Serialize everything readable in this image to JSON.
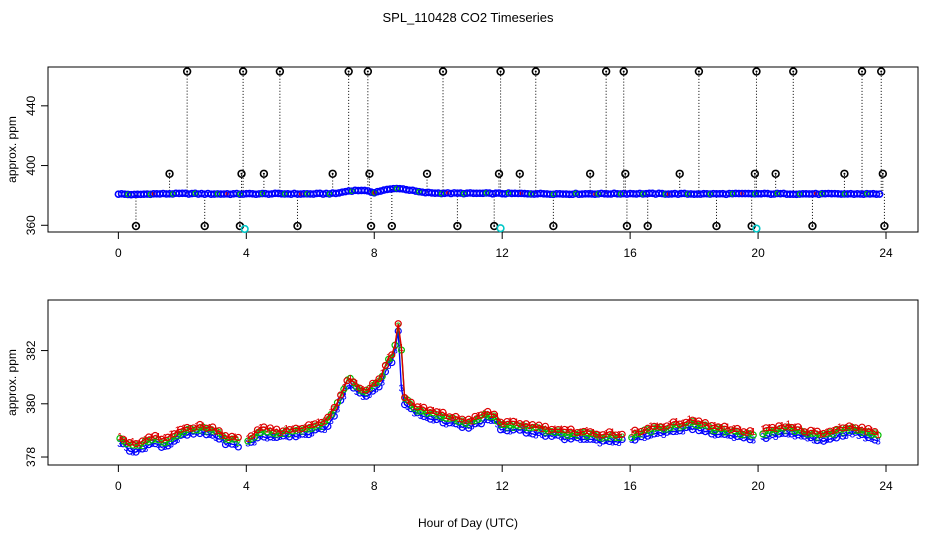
{
  "chart_data": [
    {
      "type": "scatter",
      "title": "SPL_110428  CO2 Timeseries",
      "xlabel": "",
      "ylabel": "approx. ppm",
      "xlim": [
        -2.2,
        25
      ],
      "ylim": [
        355.5,
        466
      ],
      "x_ticks": [
        0,
        4,
        8,
        12,
        16,
        20,
        24
      ],
      "y_ticks": [
        360,
        400,
        440
      ],
      "baseline": [
        [
          0,
          381.0
        ],
        [
          0.5,
          380.5
        ],
        [
          1,
          381.0
        ],
        [
          2,
          381.2
        ],
        [
          3,
          381.0
        ],
        [
          4,
          381.0
        ],
        [
          5,
          381.1
        ],
        [
          6,
          381.0
        ],
        [
          6.8,
          381.3
        ],
        [
          7.2,
          383.0
        ],
        [
          7.6,
          383.5
        ],
        [
          8,
          382.0
        ],
        [
          8.3,
          383.5
        ],
        [
          8.7,
          384.8
        ],
        [
          9.0,
          384.0
        ],
        [
          9.5,
          382.0
        ],
        [
          10,
          381.5
        ],
        [
          12,
          381.3
        ],
        [
          14,
          381.0
        ],
        [
          16,
          381.2
        ],
        [
          18,
          381.0
        ],
        [
          20,
          381.1
        ],
        [
          22,
          381.0
        ],
        [
          23.8,
          381.0
        ]
      ],
      "spikes_high": [
        2.15,
        3.9,
        5.05,
        7.2,
        7.8,
        10.15,
        11.95,
        13.05,
        15.25,
        15.8,
        18.15,
        19.95,
        21.1,
        23.25,
        23.85
      ],
      "spikes_mid": [
        1.6,
        3.85,
        4.55,
        6.7,
        7.85,
        9.65,
        11.9,
        12.55,
        14.75,
        15.85,
        17.55,
        19.9,
        20.55,
        22.7,
        23.9
      ],
      "spikes_low": [
        0.55,
        2.7,
        3.8,
        5.6,
        7.9,
        8.55,
        10.6,
        11.75,
        13.6,
        15.9,
        16.55,
        18.7,
        19.8,
        21.7,
        23.95
      ],
      "cyan_points": [
        [
          3.95,
          357.5
        ],
        [
          11.95,
          358.0
        ],
        [
          19.95,
          357.8
        ]
      ],
      "series_colors": {
        "spike": "#000000",
        "baseline": "#0000ff",
        "green": "#00c000",
        "red": "#dd0000",
        "cyan": "#00c8c8"
      }
    },
    {
      "type": "line",
      "title": "",
      "xlabel": "Hour of Day (UTC)",
      "ylabel": "approx. ppm",
      "xlim": [
        -2.2,
        25
      ],
      "ylim": [
        377.7,
        383.9
      ],
      "x_ticks": [
        0,
        4,
        8,
        12,
        16,
        20,
        24
      ],
      "y_ticks": [
        378,
        380,
        382
      ],
      "gaps_after_hour": [
        3.8,
        15.8,
        19.9
      ],
      "series": [
        {
          "name": "1",
          "color": "#dd0000",
          "marker": "1",
          "offset": 0.28
        },
        {
          "name": "2",
          "color": "#00c000",
          "marker": "2",
          "offset": 0.18
        },
        {
          "name": "3",
          "color": "#0000ff",
          "marker": "3",
          "offset": 0.0
        }
      ],
      "profile": [
        [
          0,
          378.6
        ],
        [
          0.3,
          378.3
        ],
        [
          0.6,
          378.2
        ],
        [
          1,
          378.5
        ],
        [
          1.5,
          378.4
        ],
        [
          2,
          378.8
        ],
        [
          2.5,
          378.9
        ],
        [
          3,
          378.8
        ],
        [
          3.4,
          378.5
        ],
        [
          3.8,
          378.4
        ],
        [
          4.1,
          378.5
        ],
        [
          4.5,
          378.8
        ],
        [
          5,
          378.7
        ],
        [
          5.5,
          378.8
        ],
        [
          6,
          378.9
        ],
        [
          6.5,
          379.1
        ],
        [
          6.8,
          379.7
        ],
        [
          7.0,
          380.2
        ],
        [
          7.2,
          380.8
        ],
        [
          7.4,
          380.5
        ],
        [
          7.7,
          380.2
        ],
        [
          7.9,
          380.4
        ],
        [
          8.2,
          380.7
        ],
        [
          8.4,
          381.4
        ],
        [
          8.6,
          381.6
        ],
        [
          8.75,
          382.7
        ],
        [
          8.85,
          381.8
        ],
        [
          8.95,
          380.0
        ],
        [
          9.2,
          379.7
        ],
        [
          9.6,
          379.5
        ],
        [
          10,
          379.4
        ],
        [
          10.5,
          379.2
        ],
        [
          11,
          379.1
        ],
        [
          11.5,
          379.4
        ],
        [
          11.8,
          379.3
        ],
        [
          12,
          379.0
        ],
        [
          12.5,
          379.0
        ],
        [
          13,
          378.9
        ],
        [
          13.5,
          378.8
        ],
        [
          14,
          378.7
        ],
        [
          14.5,
          378.7
        ],
        [
          15,
          378.6
        ],
        [
          15.5,
          378.6
        ],
        [
          15.8,
          378.6
        ],
        [
          16.0,
          378.6
        ],
        [
          16.5,
          378.8
        ],
        [
          17,
          378.9
        ],
        [
          17.5,
          379.0
        ],
        [
          18,
          379.1
        ],
        [
          18.5,
          378.9
        ],
        [
          19,
          378.8
        ],
        [
          19.5,
          378.7
        ],
        [
          19.9,
          378.7
        ],
        [
          20,
          378.7
        ],
        [
          20.5,
          378.8
        ],
        [
          21,
          378.9
        ],
        [
          21.5,
          378.7
        ],
        [
          22,
          378.6
        ],
        [
          22.5,
          378.8
        ],
        [
          23,
          378.9
        ],
        [
          23.5,
          378.7
        ],
        [
          23.8,
          378.6
        ]
      ]
    }
  ]
}
